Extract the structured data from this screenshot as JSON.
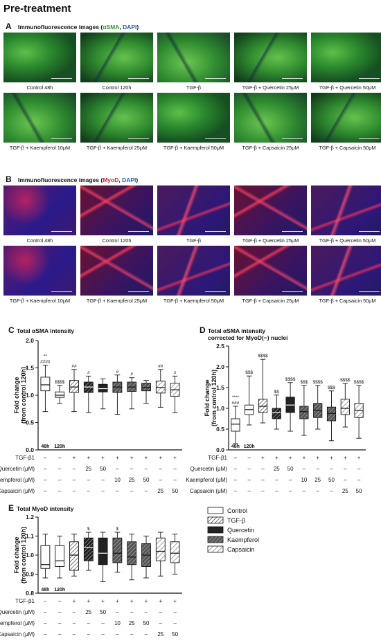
{
  "title": "Pre-treatment",
  "panelA": {
    "letter": "A",
    "head_prefix": "Immunofluorescence images (",
    "head_marker": "αSMA",
    "head_sep": ", ",
    "head_dapi": "DAPI",
    "head_suffix": ")",
    "marker_color": "#2e9a2e",
    "dapi_color": "#1f5fbf",
    "captions": [
      "Control 48h",
      "Control 120h",
      "TGF-β",
      "TGF-β + Quercetin 25μM",
      "TGF-β + Quercetin 50μM",
      "TGF-β + Kaempferol 10μM",
      "TGF-β + Kaempferol 25μM",
      "TGF-β + Kaempferol 50μM",
      "TGF-β + Capsaicin 25μM",
      "TGF-β + Capsaicin 50μM"
    ]
  },
  "panelB": {
    "letter": "B",
    "head_prefix": "Immunofluorescence images (",
    "head_marker": "MyoD",
    "head_sep": ", ",
    "head_dapi": "DAPI",
    "head_suffix": ")",
    "marker_color": "#d81c2a",
    "dapi_color": "#1f5fbf",
    "captions": [
      "Control 48h",
      "Control 120h",
      "TGF-β",
      "TGF-β + Quercetin 25μM",
      "TGF-β + Quercetin 50μM",
      "TGF-β + Kaempferol 10μM",
      "TGF-β + Kaempferol 25μM",
      "TGF-β + Kaempferol 50μM",
      "TGF-β + Capsaicin 25μM",
      "TGF-β + Capsaicin 50μM"
    ]
  },
  "treatment_rows": [
    {
      "label": "TGF-β1",
      "values": [
        "–",
        "–",
        "+",
        "+",
        "+",
        "+",
        "+",
        "+",
        "+",
        "+"
      ]
    },
    {
      "label": "Quercetin (μM)",
      "values": [
        "–",
        "–",
        "–",
        "25",
        "50",
        "–",
        "–",
        "–",
        "–",
        "–"
      ]
    },
    {
      "label": "Kaempferol (μM)",
      "values": [
        "–",
        "–",
        "–",
        "–",
        "–",
        "10",
        "25",
        "50",
        "–",
        "–"
      ]
    },
    {
      "label": "Capsaicin (μM)",
      "values": [
        "–",
        "–",
        "–",
        "–",
        "–",
        "–",
        "–",
        "–",
        "25",
        "50"
      ]
    }
  ],
  "legend": [
    "Control",
    "TGF-β",
    "Quercetin",
    "Kaempferol",
    "Capsaicin"
  ],
  "chart_data": [
    {
      "panel": "C",
      "type": "box",
      "title": "Total αSMA intensity",
      "ylabel": "Fold change (from control 120h)",
      "ylim": [
        0.0,
        2.0
      ],
      "yticks": [
        "0.0",
        "0.5",
        "1.0",
        "1.5",
        "2.0"
      ],
      "box_labels": [
        "48h",
        "120h"
      ],
      "groups": [
        "Control",
        "Control",
        "TGF-β",
        "Quercetin",
        "Quercetin",
        "Kaempferol",
        "Kaempferol",
        "Kaempferol",
        "Capsaicin",
        "Capsaicin"
      ],
      "boxes": [
        {
          "min": 0.7,
          "q1": 1.08,
          "median": 1.19,
          "q3": 1.33,
          "max": 1.55,
          "ann": [
            "####",
            "**"
          ]
        },
        {
          "min": 0.85,
          "q1": 0.96,
          "median": 1.0,
          "q3": 1.06,
          "max": 1.18,
          "ann": [
            "$$$$"
          ]
        },
        {
          "min": 0.7,
          "q1": 1.05,
          "median": 1.15,
          "q3": 1.27,
          "max": 1.47,
          "ann": [
            "##"
          ]
        },
        {
          "min": 0.68,
          "q1": 1.05,
          "median": 1.15,
          "q3": 1.24,
          "max": 1.35,
          "ann": [
            "#"
          ]
        },
        {
          "min": 0.75,
          "q1": 1.06,
          "median": 1.12,
          "q3": 1.2,
          "max": 1.3,
          "ann": []
        },
        {
          "min": 0.65,
          "q1": 1.05,
          "median": 1.15,
          "q3": 1.24,
          "max": 1.37,
          "ann": [
            "#"
          ]
        },
        {
          "min": 0.75,
          "q1": 1.07,
          "median": 1.15,
          "q3": 1.24,
          "max": 1.32,
          "ann": [
            "#"
          ]
        },
        {
          "min": 0.85,
          "q1": 1.08,
          "median": 1.14,
          "q3": 1.22,
          "max": 1.27,
          "ann": []
        },
        {
          "min": 0.78,
          "q1": 1.04,
          "median": 1.14,
          "q3": 1.26,
          "max": 1.47,
          "ann": [
            "##"
          ]
        },
        {
          "min": 0.68,
          "q1": 0.98,
          "median": 1.1,
          "q3": 1.22,
          "max": 1.35,
          "ann": [
            "#"
          ]
        }
      ]
    },
    {
      "panel": "D",
      "type": "box",
      "title": "Total αSMA intensity",
      "subtitle": "corrected for MyoD(−) nuclei",
      "ylabel": "Fold change (from control 120h)",
      "ylim": [
        0.0,
        2.5
      ],
      "yticks": [
        "0.0",
        "0.5",
        "1.0",
        "1.5",
        "2.0",
        "2.5"
      ],
      "box_labels": [
        "48h",
        "120h"
      ],
      "groups": [
        "Control",
        "Control",
        "TGF-β",
        "Quercetin",
        "Quercetin",
        "Kaempferol",
        "Kaempferol",
        "Kaempferol",
        "Capsaicin",
        "Capsaicin"
      ],
      "boxes": [
        {
          "min": 0.15,
          "q1": 0.45,
          "median": 0.62,
          "q3": 0.75,
          "max": 1.05,
          "ann": [
            "###",
            "****"
          ]
        },
        {
          "min": 0.6,
          "q1": 0.85,
          "median": 0.97,
          "q3": 1.08,
          "max": 1.78,
          "ann": [
            "$$$"
          ]
        },
        {
          "min": 0.65,
          "q1": 0.9,
          "median": 1.05,
          "q3": 1.22,
          "max": 2.18,
          "ann": [
            "$$$$"
          ]
        },
        {
          "min": 0.5,
          "q1": 0.75,
          "median": 0.9,
          "q3": 1.0,
          "max": 1.32,
          "ann": [
            "$$"
          ]
        },
        {
          "min": 0.45,
          "q1": 0.9,
          "median": 1.08,
          "q3": 1.27,
          "max": 1.62,
          "ann": [
            "$$$$"
          ]
        },
        {
          "min": 0.35,
          "q1": 0.75,
          "median": 0.92,
          "q3": 1.05,
          "max": 1.55,
          "ann": [
            "$$$"
          ]
        },
        {
          "min": 0.5,
          "q1": 0.78,
          "median": 0.95,
          "q3": 1.12,
          "max": 1.55,
          "ann": [
            "$$$$"
          ]
        },
        {
          "min": 0.22,
          "q1": 0.7,
          "median": 0.88,
          "q3": 1.03,
          "max": 1.42,
          "ann": [
            "$$$"
          ]
        },
        {
          "min": 0.55,
          "q1": 0.85,
          "median": 1.0,
          "q3": 1.22,
          "max": 1.6,
          "ann": [
            "$$$$"
          ]
        },
        {
          "min": 0.28,
          "q1": 0.78,
          "median": 0.95,
          "q3": 1.12,
          "max": 1.55,
          "ann": [
            "$$$$"
          ]
        }
      ]
    },
    {
      "panel": "E",
      "type": "box",
      "title": "Total MyoD intensity",
      "ylabel": "Fold change (from control 120h)",
      "ylim": [
        0.8,
        1.2
      ],
      "yticks": [
        "0.8",
        "0.9",
        "1.0",
        "1.1",
        "1.2"
      ],
      "box_labels": [
        "48h",
        "120h"
      ],
      "groups": [
        "Control",
        "Control",
        "TGF-β",
        "Quercetin",
        "Quercetin",
        "Kaempferol",
        "Kaempferol",
        "Kaempferol",
        "Capsaicin",
        "Capsaicin"
      ],
      "boxes": [
        {
          "min": 0.88,
          "q1": 0.93,
          "median": 0.95,
          "q3": 1.05,
          "max": 1.11,
          "ann": []
        },
        {
          "min": 0.88,
          "q1": 0.94,
          "median": 0.97,
          "q3": 1.05,
          "max": 1.1,
          "ann": []
        },
        {
          "min": 0.89,
          "q1": 0.92,
          "median": 1.0,
          "q3": 1.07,
          "max": 1.11,
          "ann": []
        },
        {
          "min": 0.92,
          "q1": 0.97,
          "median": 1.04,
          "q3": 1.09,
          "max": 1.12,
          "ann": [
            "$"
          ]
        },
        {
          "min": 0.86,
          "q1": 0.95,
          "median": 1.01,
          "q3": 1.09,
          "max": 1.12,
          "ann": []
        },
        {
          "min": 0.91,
          "q1": 0.96,
          "median": 1.01,
          "q3": 1.09,
          "max": 1.12,
          "ann": [
            "$"
          ]
        },
        {
          "min": 0.87,
          "q1": 0.95,
          "median": 0.99,
          "q3": 1.07,
          "max": 1.11,
          "ann": []
        },
        {
          "min": 0.88,
          "q1": 0.94,
          "median": 1.0,
          "q3": 1.06,
          "max": 1.1,
          "ann": []
        },
        {
          "min": 0.89,
          "q1": 0.97,
          "median": 1.02,
          "q3": 1.09,
          "max": 1.12,
          "ann": []
        },
        {
          "min": 0.9,
          "q1": 0.96,
          "median": 1.01,
          "q3": 1.07,
          "max": 1.11,
          "ann": []
        }
      ]
    }
  ]
}
